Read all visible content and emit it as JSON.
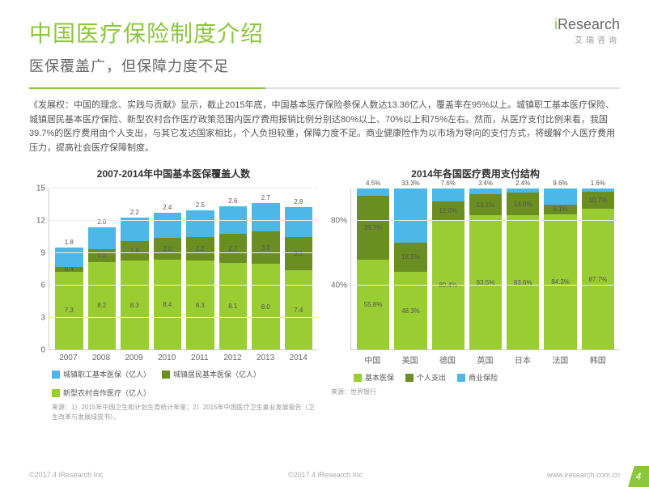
{
  "header": {
    "title": "中国医疗保险制度介绍",
    "subtitle": "医保覆盖广，但保障力度不足",
    "logo_main": "iResearch",
    "logo_sub": "艾瑞咨询"
  },
  "body_text": "《发展权：中国的理念、实践与贡献》显示，截止2015年底，中国基本医疗保险参保人数达13.36亿人，覆盖率在95%以上。城镇职工基本医疗保险、城镇居民基本医疗保险、新型农村合作医疗政策范围内医疗费用报销比例分别达80%以上、70%以上和75%左右。然而，从医疗支付比例来看，我国39.7%的医疗费用由个人支出，与其它发达国家相比，个人负担较重，保障力度不足。商业健康险作为以市场为导向的支付方式，将缓解个人医疗费用压力，提高社会医疗保障制度。",
  "chart_left": {
    "type": "stacked_bar",
    "title": "2007-2014年中国基本医保覆盖人数",
    "categories": [
      "2007",
      "2008",
      "2009",
      "2010",
      "2011",
      "2012",
      "2013",
      "2014"
    ],
    "series": [
      {
        "name": "新型农村合作医疗（亿人）",
        "color": "#9acd32",
        "values": [
          7.3,
          8.2,
          8.3,
          8.4,
          8.3,
          8.1,
          8.0,
          7.4
        ]
      },
      {
        "name": "城镇居民基本医保（亿人）",
        "color": "#6b8e23",
        "values": [
          0.4,
          1.2,
          1.8,
          2.0,
          2.2,
          2.7,
          3.0,
          3.1
        ]
      },
      {
        "name": "城镇职工基本医保（亿人）",
        "color": "#4db8e8",
        "values": [
          1.8,
          2.0,
          2.2,
          2.4,
          2.5,
          2.6,
          2.7,
          2.8
        ]
      }
    ],
    "ylim": [
      0,
      15
    ],
    "yticks": [
      0,
      3,
      6,
      9,
      12,
      15
    ],
    "grid_color": "#eeeeee",
    "axis_color": "#cccccc",
    "label_fontsize": 8,
    "axis_fontsize": 10,
    "source": "来源：1）2015年中国卫生和计划生育统计年鉴；2）2015年中国医疗卫生事业发展报告（卫生改革与发展绿皮书）。",
    "legend": [
      {
        "label": "城镇职工基本医保（亿人）",
        "color": "#4db8e8"
      },
      {
        "label": "城镇居民基本医保（亿人）",
        "color": "#6b8e23"
      },
      {
        "label": "新型农村合作医疗（亿人）",
        "color": "#9acd32"
      }
    ]
  },
  "chart_right": {
    "type": "stacked_bar_pct",
    "title": "2014年各国医疗费用支付结构",
    "categories": [
      "中国",
      "美国",
      "德国",
      "英国",
      "日本",
      "法国",
      "韩国"
    ],
    "series": [
      {
        "name": "基本医保",
        "color": "#9acd32",
        "values": [
          55.8,
          48.3,
          80.4,
          83.5,
          83.6,
          84.3,
          87.7
        ]
      },
      {
        "name": "个人支出",
        "color": "#6b8e23",
        "values": [
          39.7,
          18.5,
          12.0,
          13.1,
          14.0,
          6.1,
          10.7
        ]
      },
      {
        "name": "商业保险",
        "color": "#4db8e8",
        "values": [
          4.5,
          33.3,
          7.6,
          3.4,
          2.4,
          9.6,
          1.6
        ]
      }
    ],
    "ylim": [
      0,
      100
    ],
    "yticks": [
      0,
      40,
      80
    ],
    "ytick_labels": [
      "",
      "40%",
      "80%"
    ],
    "grid_color": "#eeeeee",
    "axis_color": "#cccccc",
    "label_fontsize": 8,
    "axis_fontsize": 10,
    "source": "来源：世界银行",
    "legend": [
      {
        "label": "基本医保",
        "color": "#9acd32"
      },
      {
        "label": "个人支出",
        "color": "#6b8e23"
      },
      {
        "label": "商业保险",
        "color": "#4db8e8"
      }
    ]
  },
  "footer": {
    "copyright_left": "©2017.4 iResearch Inc",
    "copyright_right": "©2017.4 iResearch Inc",
    "website": "www.iresearch.com.cn",
    "page": "4"
  },
  "colors": {
    "accent": "#8cc63f",
    "title": "#8cc63f",
    "text": "#555555"
  }
}
